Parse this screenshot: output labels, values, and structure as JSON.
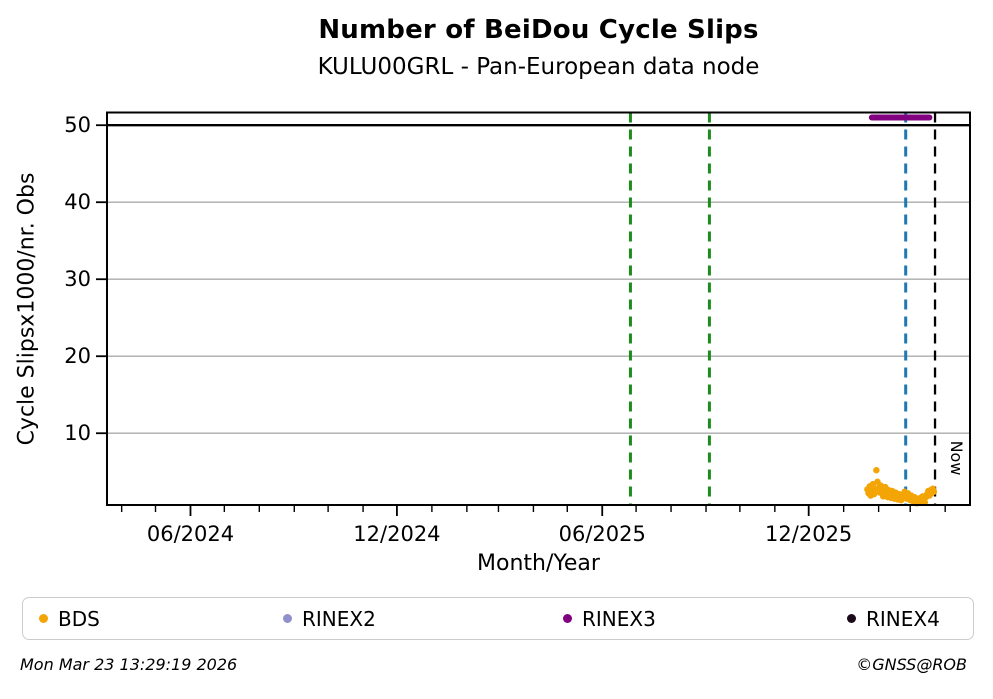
{
  "chart_data": {
    "type": "scatter",
    "title": "Number of BeiDou Cycle Slips",
    "subtitle": "KULU00GRL - Pan-European data node",
    "xlabel": "Month/Year",
    "ylabel": "Cycle Slipsx1000/nr. Obs",
    "xlim": [
      "2024-03-19",
      "2026-04-23"
    ],
    "ylim": [
      0.68,
      51.65
    ],
    "y_ticks": [
      10,
      20,
      30,
      40,
      50
    ],
    "x_ticks_major": [
      {
        "label": "06/2024",
        "date": "2024-06-01"
      },
      {
        "label": "12/2024",
        "date": "2024-12-01"
      },
      {
        "label": "06/2025",
        "date": "2025-06-01"
      },
      {
        "label": "12/2025",
        "date": "2025-12-01"
      }
    ],
    "grid": "horizontal-gray",
    "grid_color": "#ababab",
    "hlines": [
      {
        "name": "cutoff-line",
        "y": 50,
        "color": "#000000",
        "style": "solid"
      }
    ],
    "vlines": [
      {
        "name": "event-line-1",
        "date": "2025-06-26",
        "color": "#1c8c1c",
        "style": "dashed"
      },
      {
        "name": "event-line-2",
        "date": "2025-09-04",
        "color": "#1c8c1c",
        "style": "dashed"
      },
      {
        "name": "latest-data-line",
        "date": "2026-02-25",
        "color": "#1f77b4",
        "style": "dashed"
      },
      {
        "name": "now-line",
        "date": "2026-03-23",
        "color": "#000000",
        "style": "dashed",
        "label": "Now"
      }
    ],
    "now_label": "Now",
    "series": [
      {
        "name": "BDS",
        "type": "scatter",
        "color": "#f4a506",
        "points": [
          [
            "2026-01-22",
            2.7
          ],
          [
            "2026-01-23",
            2.2
          ],
          [
            "2026-01-24",
            3.1
          ],
          [
            "2026-01-25",
            1.9
          ],
          [
            "2026-01-26",
            2.5
          ],
          [
            "2026-01-27",
            3.4
          ],
          [
            "2026-01-28",
            2.1
          ],
          [
            "2026-01-29",
            2.8
          ],
          [
            "2026-01-30",
            5.2
          ],
          [
            "2026-01-31",
            3.7
          ],
          [
            "2026-02-01",
            2.9
          ],
          [
            "2026-02-02",
            2.3
          ],
          [
            "2026-02-03",
            3.2
          ],
          [
            "2026-02-04",
            2.6
          ],
          [
            "2026-02-05",
            1.8
          ],
          [
            "2026-02-06",
            2.4
          ],
          [
            "2026-02-07",
            3.0
          ],
          [
            "2026-02-08",
            2.1
          ],
          [
            "2026-02-09",
            1.7
          ],
          [
            "2026-02-10",
            2.6
          ],
          [
            "2026-02-11",
            2.2
          ],
          [
            "2026-02-12",
            1.6
          ],
          [
            "2026-02-13",
            2.5
          ],
          [
            "2026-02-14",
            2.0
          ],
          [
            "2026-02-15",
            1.5
          ],
          [
            "2026-02-16",
            2.3
          ],
          [
            "2026-02-17",
            1.8
          ],
          [
            "2026-02-18",
            1.4
          ],
          [
            "2026-02-19",
            2.1
          ],
          [
            "2026-02-20",
            1.7
          ],
          [
            "2026-02-21",
            1.3
          ],
          [
            "2026-02-22",
            2.0
          ],
          [
            "2026-02-23",
            1.6
          ],
          [
            "2026-02-24",
            2.4
          ],
          [
            "2026-02-25",
            1.9
          ],
          [
            "2026-02-26",
            1.5
          ],
          [
            "2026-02-27",
            2.2
          ],
          [
            "2026-02-28",
            1.7
          ],
          [
            "2026-03-01",
            1.3
          ],
          [
            "2026-03-02",
            1.9
          ],
          [
            "2026-03-03",
            1.5
          ],
          [
            "2026-03-04",
            1.1
          ],
          [
            "2026-03-05",
            1.7
          ],
          [
            "2026-03-06",
            1.2
          ],
          [
            "2026-03-07",
            0.9
          ],
          [
            "2026-03-08",
            1.4
          ],
          [
            "2026-03-09",
            1.0
          ],
          [
            "2026-03-10",
            1.6
          ],
          [
            "2026-03-11",
            1.2
          ],
          [
            "2026-03-12",
            1.8
          ],
          [
            "2026-03-13",
            1.4
          ],
          [
            "2026-03-14",
            1.0
          ],
          [
            "2026-03-15",
            1.7
          ],
          [
            "2026-03-16",
            2.1
          ],
          [
            "2026-03-17",
            2.5
          ],
          [
            "2026-03-18",
            1.9
          ],
          [
            "2026-03-19",
            2.6
          ],
          [
            "2026-03-20",
            2.2
          ],
          [
            "2026-03-21",
            2.8
          ],
          [
            "2026-03-22",
            2.4
          ]
        ]
      },
      {
        "name": "RINEX3",
        "type": "segment",
        "color": "#800080",
        "y": 51,
        "span": [
          "2026-01-26",
          "2026-03-18"
        ]
      }
    ],
    "legend": [
      {
        "label": "BDS",
        "color": "#f4a506"
      },
      {
        "label": "RINEX2",
        "color": "#9090cc"
      },
      {
        "label": "RINEX3",
        "color": "#800080"
      },
      {
        "label": "RINEX4",
        "color": "#1a0a1a"
      }
    ],
    "legend_position": "bottom"
  },
  "footer": {
    "timestamp": "Mon Mar 23 13:29:19 2026",
    "credit": "©GNSS@ROB"
  }
}
